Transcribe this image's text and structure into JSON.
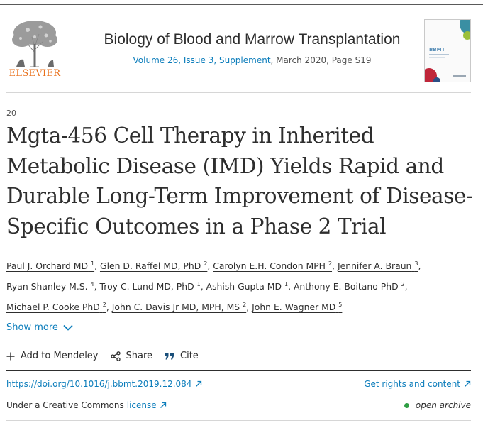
{
  "journal": {
    "publisher": "ELSEVIER",
    "title": "Biology of Blood and Marrow Transplantation",
    "issue_link": "Volume 26, Issue 3, Supplement",
    "issue_rest": ", March 2020, Page S19",
    "cover_brand": "BBMT"
  },
  "article": {
    "number": "20",
    "title": "Mgta-456 Cell Therapy in Inherited Metabolic Disease (IMD) Yields Rapid and Durable Long-Term Improvement of Disease-Specific Outcomes in a Phase 2 Trial"
  },
  "authors": [
    {
      "name": "Paul J. Orchard MD",
      "sup": "1"
    },
    {
      "name": "Glen D. Raffel MD, PhD",
      "sup": "2"
    },
    {
      "name": "Carolyn E.H. Condon MPH",
      "sup": "2"
    },
    {
      "name": "Jennifer A. Braun",
      "sup": "3"
    },
    {
      "name": "Ryan Shanley M.S.",
      "sup": "4"
    },
    {
      "name": "Troy C. Lund MD, PhD",
      "sup": "1"
    },
    {
      "name": "Ashish Gupta MD",
      "sup": "1"
    },
    {
      "name": "Anthony E. Boitano PhD",
      "sup": "2"
    },
    {
      "name": "Michael P. Cooke PhD",
      "sup": "2"
    },
    {
      "name": "John C. Davis Jr MD, MPH, MS",
      "sup": "2"
    },
    {
      "name": "John E. Wagner MD",
      "sup": "5"
    }
  ],
  "show_more": "Show more",
  "actions": {
    "mendeley": "Add to Mendeley",
    "share": "Share",
    "cite": "Cite"
  },
  "links": {
    "doi": "https://doi.org/10.1016/j.bbmt.2019.12.084",
    "rights": "Get rights and content",
    "license_prefix": "Under a Creative Commons",
    "license_link": "license",
    "open_archive": "open archive"
  },
  "colors": {
    "link": "#0c7dbb",
    "elsevier_orange": "#e9711c",
    "open_archive_dot": "#2f9e44"
  }
}
